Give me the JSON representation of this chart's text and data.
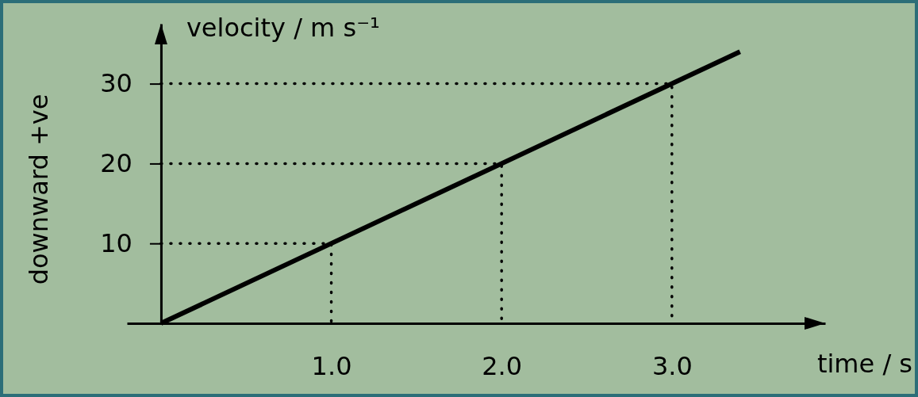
{
  "chart_data": {
    "type": "line",
    "ylabel": "velocity / m s⁻¹",
    "xlabel": "time / s",
    "annotations": [
      "downward +ve"
    ],
    "line_style": "solid",
    "xlim": [
      -0.2,
      3.9
    ],
    "ylim": [
      0,
      37.5
    ],
    "xticks": [
      {
        "value": 1,
        "label": "1.0"
      },
      {
        "value": 2,
        "label": "2.0"
      },
      {
        "value": 3,
        "label": "3.0"
      }
    ],
    "yticks": [
      10,
      20,
      30
    ],
    "series": [
      {
        "color": "#000000",
        "x": [
          0,
          3.4
        ],
        "values": [
          0,
          34
        ]
      },
      {
        "color": "#000000",
        "line_style": "dotted",
        "x": [
          0,
          1,
          1
        ],
        "values": [
          10,
          10,
          0
        ]
      },
      {
        "color": "#000000",
        "line_style": "dotted",
        "x": [
          0,
          2,
          2
        ],
        "values": [
          20,
          20,
          0
        ]
      },
      {
        "color": "#000000",
        "line_style": "dotted",
        "x": [
          0,
          3,
          3
        ],
        "values": [
          30,
          30,
          0
        ]
      }
    ]
  }
}
